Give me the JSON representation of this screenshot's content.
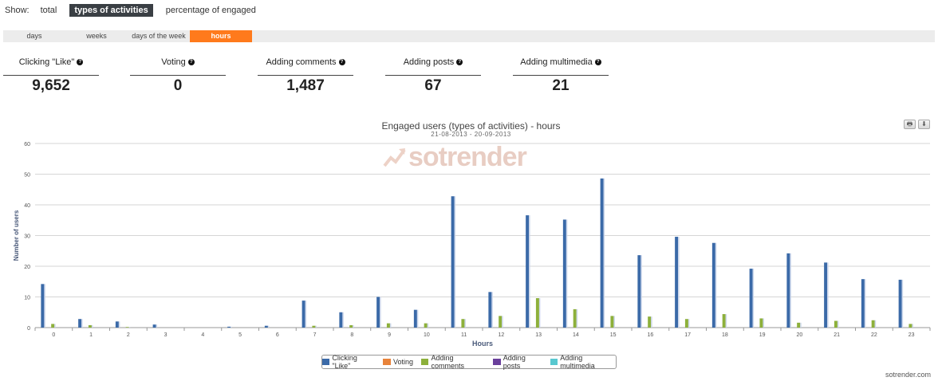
{
  "show": {
    "label": "Show:",
    "options": [
      "total",
      "types of activities",
      "percentage of engaged"
    ],
    "active_index": 1
  },
  "tabs": {
    "items": [
      "days",
      "weeks",
      "days of the week",
      "hours"
    ],
    "active_index": 3
  },
  "stats": [
    {
      "label": "Clicking \"Like\"",
      "value": "9,652"
    },
    {
      "label": "Voting",
      "value": "0"
    },
    {
      "label": "Adding comments",
      "value": "1,487"
    },
    {
      "label": "Adding posts",
      "value": "67"
    },
    {
      "label": "Adding multimedia",
      "value": "21"
    }
  ],
  "help_glyph": "?",
  "chart_controls": {
    "print": "🖶",
    "download": "⬇"
  },
  "watermark": {
    "text": "sotrender"
  },
  "credit": "sotrender.com",
  "colors": {
    "accent": "#ff7a1c",
    "like": "#3b6aa8",
    "voting": "#e8833a",
    "comments": "#8db03b",
    "posts": "#6a3f9b",
    "multimedia": "#58c8d0"
  },
  "chart_data": {
    "type": "bar",
    "title": "Engaged users (types of activities) - hours",
    "subtitle": "21-08-2013 - 20-09-2013",
    "xlabel": "Hours",
    "ylabel": "Number of users",
    "ylim": [
      0,
      60
    ],
    "yticks": [
      0,
      10,
      20,
      30,
      40,
      50,
      60
    ],
    "grid": true,
    "legend_position": "bottom-center",
    "categories": [
      "0",
      "1",
      "2",
      "3",
      "4",
      "5",
      "6",
      "7",
      "8",
      "9",
      "10",
      "11",
      "12",
      "13",
      "14",
      "15",
      "16",
      "17",
      "18",
      "19",
      "20",
      "21",
      "22",
      "23"
    ],
    "series": [
      {
        "name": "Clicking \"Like\"",
        "color": "#3b6aa8",
        "values": [
          14.2,
          2.8,
          2.0,
          1.0,
          0,
          0.3,
          0.6,
          8.8,
          5.0,
          10.0,
          5.8,
          42.8,
          11.6,
          36.6,
          35.2,
          48.6,
          23.6,
          29.6,
          27.6,
          19.2,
          24.2,
          21.2,
          15.8,
          15.6
        ]
      },
      {
        "name": "Voting",
        "color": "#e8833a",
        "values": [
          0,
          0,
          0,
          0,
          0,
          0,
          0,
          0,
          0,
          0,
          0,
          0,
          0,
          0,
          0,
          0,
          0,
          0,
          0,
          0,
          0,
          0,
          0,
          0
        ]
      },
      {
        "name": "Adding comments",
        "color": "#8db03b",
        "values": [
          1.2,
          0.8,
          0.2,
          0,
          0,
          0,
          0,
          0.6,
          0.8,
          1.4,
          1.4,
          2.8,
          3.8,
          9.6,
          6.0,
          3.8,
          3.6,
          2.8,
          4.4,
          3.0,
          1.6,
          2.2,
          2.4,
          1.2
        ]
      },
      {
        "name": "Adding posts",
        "color": "#6a3f9b",
        "values": [
          0,
          0,
          0,
          0,
          0,
          0,
          0,
          0,
          0,
          0,
          0,
          0,
          0,
          0,
          0,
          0,
          0,
          0,
          0,
          0,
          0,
          0,
          0,
          0
        ]
      },
      {
        "name": "Adding multimedia",
        "color": "#58c8d0",
        "values": [
          0,
          0,
          0,
          0,
          0,
          0,
          0,
          0,
          0,
          0,
          0,
          0,
          0,
          0,
          0,
          0,
          0,
          0,
          0,
          0,
          0,
          0,
          0,
          0
        ]
      }
    ]
  }
}
